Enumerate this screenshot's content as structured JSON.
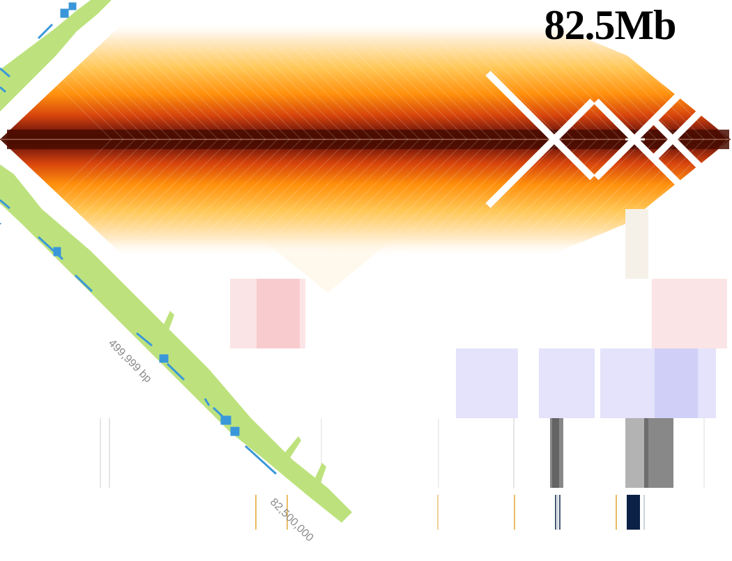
{
  "view": {
    "region_label": "82.5Mb",
    "coord_label_1": "499,999 bp",
    "coord_label_2": "82,500,000"
  },
  "colors": {
    "heatmap_dark": "#3a0a00",
    "heatmap_mid": "#d43a00",
    "heatmap_light": "#ffb500",
    "gene_track": "#bde27d",
    "gene_features": "#3a97d9",
    "red_domain": "#f7c3c6",
    "blue_domain": "#c9c8f7",
    "signal_dark": "#555555",
    "signal_light": "#b3b3b3",
    "marker_orange": "#e3a531",
    "marker_navy": "#0b2246"
  }
}
